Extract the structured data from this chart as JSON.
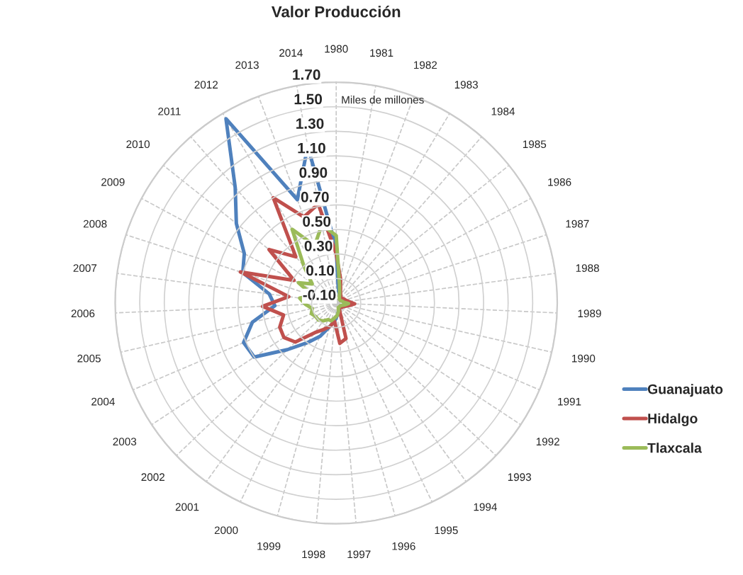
{
  "chart_data": {
    "type": "radar",
    "title": "Valor Producción",
    "annotations": [
      "Miles de millones"
    ],
    "categories": [
      "1980",
      "1981",
      "1982",
      "1983",
      "1984",
      "1985",
      "1986",
      "1987",
      "1988",
      "1989",
      "1990",
      "1991",
      "1992",
      "1993",
      "1994",
      "1995",
      "1996",
      "1997",
      "1998",
      "1999",
      "2000",
      "2001",
      "2002",
      "2003",
      "2004",
      "2005",
      "2006",
      "2007",
      "2008",
      "2009",
      "2010",
      "2011",
      "2012",
      "2013",
      "2014"
    ],
    "series": [
      {
        "name": "Guanajuato",
        "color": "#4f81bd",
        "values": [
          0.35,
          0.0,
          -0.02,
          -0.04,
          -0.05,
          -0.05,
          -0.05,
          -0.04,
          -0.03,
          -0.02,
          -0.03,
          -0.05,
          -0.05,
          -0.05,
          -0.05,
          -0.05,
          -0.03,
          0.0,
          0.05,
          0.1,
          0.2,
          0.3,
          0.45,
          0.7,
          0.72,
          0.6,
          0.4,
          0.45,
          0.7,
          0.75,
          0.94,
          1.15,
          1.65,
          0.8,
          1.2
        ]
      },
      {
        "name": "Hidalgo",
        "color": "#c0504d",
        "values": [
          0.3,
          0.1,
          0.0,
          -0.03,
          -0.04,
          -0.04,
          -0.03,
          -0.02,
          0.0,
          0.05,
          0.0,
          -0.03,
          -0.04,
          -0.05,
          -0.05,
          -0.04,
          0.2,
          0.23,
          0.05,
          0.1,
          0.14,
          0.2,
          0.36,
          0.41,
          0.4,
          0.34,
          0.5,
          0.29,
          0.72,
          0.29,
          0.6,
          0.4,
          0.9,
          0.65,
          0.72
        ]
      },
      {
        "name": "Tlaxcala",
        "color": "#9bbb59",
        "values": [
          0.45,
          0.05,
          -0.02,
          -0.05,
          -0.06,
          -0.06,
          -0.06,
          -0.05,
          -0.04,
          0.0,
          -0.03,
          -0.05,
          -0.06,
          -0.06,
          -0.06,
          -0.06,
          -0.03,
          0.0,
          0.02,
          0.05,
          0.05,
          0.08,
          0.1,
          0.1,
          0.12,
          0.1,
          0.15,
          0.2,
          0.1,
          0.25,
          0.15,
          0.3,
          0.6,
          0.4,
          0.55
        ]
      }
    ],
    "ylim": [
      -0.1,
      1.7
    ],
    "yticks": [
      {
        "value": -0.1,
        "label": "-0.10"
      },
      {
        "value": 0.1,
        "label": "0.10"
      },
      {
        "value": 0.3,
        "label": "0.30"
      },
      {
        "value": 0.5,
        "label": "0.50"
      },
      {
        "value": 0.7,
        "label": "0.70"
      },
      {
        "value": 0.9,
        "label": "0.90"
      },
      {
        "value": 1.1,
        "label": "1.10"
      },
      {
        "value": 1.3,
        "label": "1.30"
      },
      {
        "value": 1.5,
        "label": "1.50"
      },
      {
        "value": 1.7,
        "label": "1.70"
      }
    ],
    "grid": true,
    "legend": "right",
    "marker": "none",
    "line_style": "solid"
  }
}
